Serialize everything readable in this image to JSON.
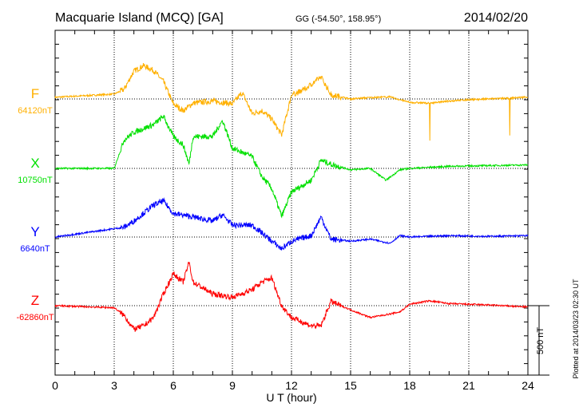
{
  "chart_data": {
    "type": "line",
    "title": "Macquarie Island (MCQ)  [GA]",
    "coords": "GG (-54.50°, 158.95°)",
    "date": "2014/02/20",
    "xlabel": "U T (hour)",
    "xlim": [
      0,
      24
    ],
    "xticks": [
      "0",
      "3",
      "6",
      "9",
      "12",
      "15",
      "18",
      "21",
      "24"
    ],
    "scale_bar": "500 nT",
    "plotted_note": "Plotted at 2014/03/23 02:30 UT",
    "grid": true,
    "series": [
      {
        "name": "F",
        "baseline_label": "64120nT",
        "color": "#ffb000",
        "points": [
          [
            0,
            12
          ],
          [
            3,
            35
          ],
          [
            3.5,
            69
          ],
          [
            4,
            200
          ],
          [
            4.5,
            240
          ],
          [
            5,
            205
          ],
          [
            5.5,
            125
          ],
          [
            6,
            -35
          ],
          [
            6.5,
            -85
          ],
          [
            7,
            -30
          ],
          [
            8,
            -15
          ],
          [
            9,
            -35
          ],
          [
            9.5,
            45
          ],
          [
            10,
            -105
          ],
          [
            10.5,
            -85
          ],
          [
            11,
            -145
          ],
          [
            11.5,
            -260
          ],
          [
            12,
            30
          ],
          [
            12.5,
            55
          ],
          [
            13,
            105
          ],
          [
            13.5,
            160
          ],
          [
            14,
            30
          ],
          [
            15,
            0
          ],
          [
            16,
            10
          ],
          [
            17,
            15
          ],
          [
            18,
            -25
          ],
          [
            19,
            -30
          ],
          [
            20,
            -15
          ],
          [
            21,
            -5
          ],
          [
            22,
            0
          ],
          [
            23,
            5
          ],
          [
            24,
            15
          ]
        ]
      },
      {
        "name": "X",
        "baseline_label": "10750nT",
        "color": "#00e000",
        "points": [
          [
            0,
            0
          ],
          [
            3,
            0
          ],
          [
            3.5,
            205
          ],
          [
            4,
            260
          ],
          [
            5,
            315
          ],
          [
            5.5,
            375
          ],
          [
            6,
            230
          ],
          [
            6.5,
            170
          ],
          [
            6.8,
            30
          ],
          [
            7,
            230
          ],
          [
            8,
            230
          ],
          [
            8.5,
            345
          ],
          [
            9,
            145
          ],
          [
            10,
            85
          ],
          [
            10.5,
            -60
          ],
          [
            11,
            -145
          ],
          [
            11.5,
            -345
          ],
          [
            12,
            -170
          ],
          [
            13,
            -85
          ],
          [
            13.5,
            60
          ],
          [
            14,
            30
          ],
          [
            15,
            -10
          ],
          [
            16,
            0
          ],
          [
            16.8,
            -85
          ],
          [
            17.5,
            -10
          ],
          [
            18,
            0
          ],
          [
            20,
            15
          ],
          [
            24,
            25
          ]
        ]
      },
      {
        "name": "Y",
        "baseline_label": "6640nT",
        "color": "#0000ff",
        "points": [
          [
            0,
            0
          ],
          [
            3,
            60
          ],
          [
            3.5,
            70
          ],
          [
            4,
            115
          ],
          [
            5,
            230
          ],
          [
            5.5,
            260
          ],
          [
            6,
            170
          ],
          [
            7,
            145
          ],
          [
            8,
            115
          ],
          [
            8.5,
            160
          ],
          [
            9,
            85
          ],
          [
            10,
            85
          ],
          [
            10.5,
            30
          ],
          [
            11,
            -30
          ],
          [
            11.5,
            -85
          ],
          [
            12,
            -30
          ],
          [
            13,
            10
          ],
          [
            13.5,
            145
          ],
          [
            14,
            -15
          ],
          [
            15,
            -30
          ],
          [
            16,
            -15
          ],
          [
            17,
            -45
          ],
          [
            17.5,
            10
          ],
          [
            18,
            0
          ],
          [
            20,
            10
          ],
          [
            22,
            5
          ],
          [
            24,
            10
          ]
        ]
      },
      {
        "name": "Z",
        "baseline_label": "-62860nT",
        "color": "#ff0000",
        "points": [
          [
            0,
            0
          ],
          [
            3,
            -15
          ],
          [
            3.5,
            -70
          ],
          [
            4,
            -170
          ],
          [
            4.5,
            -145
          ],
          [
            5,
            -85
          ],
          [
            5.5,
            85
          ],
          [
            6,
            230
          ],
          [
            6.5,
            170
          ],
          [
            6.8,
            315
          ],
          [
            7,
            170
          ],
          [
            8,
            85
          ],
          [
            9,
            60
          ],
          [
            10,
            115
          ],
          [
            10.5,
            170
          ],
          [
            11,
            200
          ],
          [
            11.5,
            0
          ],
          [
            12,
            -85
          ],
          [
            13,
            -145
          ],
          [
            13.5,
            -145
          ],
          [
            14,
            30
          ],
          [
            15,
            -30
          ],
          [
            16,
            -85
          ],
          [
            17,
            -60
          ],
          [
            17.5,
            -45
          ],
          [
            18,
            10
          ],
          [
            19,
            35
          ],
          [
            20,
            15
          ],
          [
            22,
            5
          ],
          [
            24,
            -10
          ]
        ]
      }
    ]
  }
}
